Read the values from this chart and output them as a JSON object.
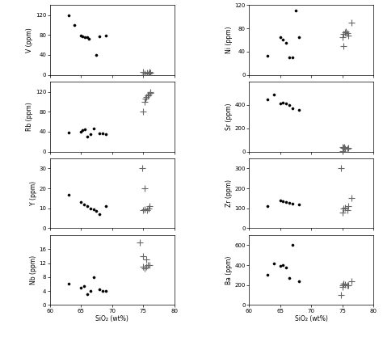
{
  "left_panels": [
    {
      "ylabel": "V (ppm)",
      "ylim": [
        0,
        140
      ],
      "yticks": [
        0,
        40,
        80,
        120
      ],
      "diamonds": [
        [
          63,
          120
        ],
        [
          64,
          100
        ],
        [
          65.0,
          78
        ],
        [
          65.3,
          77
        ],
        [
          65.6,
          76
        ],
        [
          66.0,
          75
        ],
        [
          66.3,
          73
        ],
        [
          67.5,
          40
        ],
        [
          68.0,
          77
        ],
        [
          69.0,
          78
        ]
      ],
      "crosses": [
        [
          75.0,
          5
        ],
        [
          75.3,
          3
        ],
        [
          75.6,
          4
        ],
        [
          75.9,
          3
        ],
        [
          76.2,
          4
        ],
        [
          76.0,
          6
        ]
      ]
    },
    {
      "ylabel": "Rb (ppm)",
      "ylim": [
        0,
        140
      ],
      "yticks": [
        0,
        40,
        80,
        120
      ],
      "diamonds": [
        [
          63,
          38
        ],
        [
          65,
          40
        ],
        [
          65.3,
          43
        ],
        [
          65.6,
          44
        ],
        [
          66.0,
          30
        ],
        [
          66.5,
          35
        ],
        [
          67,
          47
        ],
        [
          68,
          37
        ],
        [
          68.5,
          36
        ],
        [
          69,
          35
        ]
      ],
      "crosses": [
        [
          75.0,
          80
        ],
        [
          75.2,
          100
        ],
        [
          75.4,
          107
        ],
        [
          75.5,
          110
        ],
        [
          75.7,
          112
        ],
        [
          75.9,
          115
        ],
        [
          76.1,
          118
        ],
        [
          76.2,
          120
        ]
      ]
    },
    {
      "ylabel": "Y (ppm)",
      "ylim": [
        0,
        35
      ],
      "yticks": [
        0,
        10,
        20,
        30
      ],
      "diamonds": [
        [
          63,
          17
        ],
        [
          65,
          13
        ],
        [
          65.5,
          12
        ],
        [
          66,
          11
        ],
        [
          66.5,
          10
        ],
        [
          67,
          9.5
        ],
        [
          67.5,
          8.5
        ],
        [
          68,
          7
        ],
        [
          69,
          11
        ]
      ],
      "crosses": [
        [
          75.0,
          9
        ],
        [
          75.3,
          9.5
        ],
        [
          75.6,
          9
        ],
        [
          75.9,
          10
        ],
        [
          76.0,
          11
        ],
        [
          75.2,
          20
        ],
        [
          74.8,
          30
        ]
      ]
    },
    {
      "ylabel": "Nb (ppm)",
      "ylim": [
        0,
        20
      ],
      "yticks": [
        0,
        4,
        8,
        12,
        16
      ],
      "diamonds": [
        [
          63,
          6
        ],
        [
          65,
          5
        ],
        [
          65.5,
          5.5
        ],
        [
          66,
          3
        ],
        [
          66.5,
          4
        ],
        [
          67,
          8
        ],
        [
          68,
          4.5
        ],
        [
          68.5,
          4
        ],
        [
          69,
          4
        ]
      ],
      "crosses": [
        [
          75.0,
          11
        ],
        [
          75.2,
          10.5
        ],
        [
          75.5,
          11
        ],
        [
          75.8,
          11.5
        ],
        [
          76.0,
          11.5
        ],
        [
          75.5,
          13
        ],
        [
          75.0,
          14
        ],
        [
          74.5,
          18
        ]
      ]
    }
  ],
  "right_panels": [
    {
      "ylabel": "Ni (ppm)",
      "ylim": [
        0,
        120
      ],
      "yticks": [
        0,
        40,
        80,
        120
      ],
      "diamonds": [
        [
          63,
          33
        ],
        [
          65,
          65
        ],
        [
          65.5,
          60
        ],
        [
          66.0,
          55
        ],
        [
          66.5,
          30
        ],
        [
          67.0,
          30
        ],
        [
          67.5,
          110
        ],
        [
          68,
          65
        ]
      ],
      "crosses": [
        [
          75.0,
          65
        ],
        [
          75.2,
          70
        ],
        [
          75.4,
          73
        ],
        [
          75.6,
          75
        ],
        [
          75.8,
          72
        ],
        [
          76.0,
          68
        ],
        [
          76.5,
          90
        ],
        [
          75.2,
          50
        ]
      ]
    },
    {
      "ylabel": "Sr (ppm)",
      "ylim": [
        0,
        600
      ],
      "yticks": [
        0,
        200,
        400
      ],
      "diamonds": [
        [
          63,
          450
        ],
        [
          64,
          490
        ],
        [
          65,
          415
        ],
        [
          65.5,
          420
        ],
        [
          66,
          415
        ],
        [
          66.5,
          400
        ],
        [
          67,
          375
        ],
        [
          68,
          360
        ]
      ],
      "crosses": [
        [
          75.0,
          35
        ],
        [
          75.2,
          28
        ],
        [
          75.5,
          25
        ],
        [
          75.8,
          25
        ],
        [
          75.9,
          30
        ],
        [
          75.3,
          40
        ],
        [
          75.1,
          5
        ]
      ]
    },
    {
      "ylabel": "Zr (ppm)",
      "ylim": [
        0,
        350
      ],
      "yticks": [
        0,
        100,
        200,
        300
      ],
      "diamonds": [
        [
          63,
          110
        ],
        [
          65,
          140
        ],
        [
          65.5,
          135
        ],
        [
          66,
          130
        ],
        [
          66.5,
          128
        ],
        [
          67,
          125
        ],
        [
          68,
          120
        ]
      ],
      "crosses": [
        [
          75.0,
          80
        ],
        [
          75.2,
          100
        ],
        [
          75.5,
          105
        ],
        [
          75.8,
          90
        ],
        [
          75.9,
          110
        ],
        [
          76.5,
          150
        ],
        [
          74.8,
          300
        ]
      ]
    },
    {
      "ylabel": "Ba (ppm)",
      "ylim": [
        0,
        700
      ],
      "yticks": [
        0,
        200,
        400,
        600
      ],
      "diamonds": [
        [
          63,
          300
        ],
        [
          64,
          420
        ],
        [
          65,
          390
        ],
        [
          65.5,
          400
        ],
        [
          66,
          380
        ],
        [
          66.5,
          270
        ],
        [
          67,
          600
        ],
        [
          68,
          240
        ]
      ],
      "crosses": [
        [
          75.0,
          200
        ],
        [
          75.2,
          210
        ],
        [
          75.5,
          205
        ],
        [
          75.8,
          195
        ],
        [
          76.0,
          200
        ],
        [
          76.5,
          240
        ],
        [
          74.8,
          100
        ],
        [
          75.1,
          180
        ]
      ]
    }
  ],
  "xlim": [
    60,
    80
  ],
  "xticks": [
    60,
    65,
    70,
    75,
    80
  ],
  "xlabel": "SiO₂ (wt%)",
  "diamond_color": "#000000",
  "cross_color": "#666666",
  "diamond_size": 8,
  "cross_size": 20,
  "cross_linewidth": 0.8
}
